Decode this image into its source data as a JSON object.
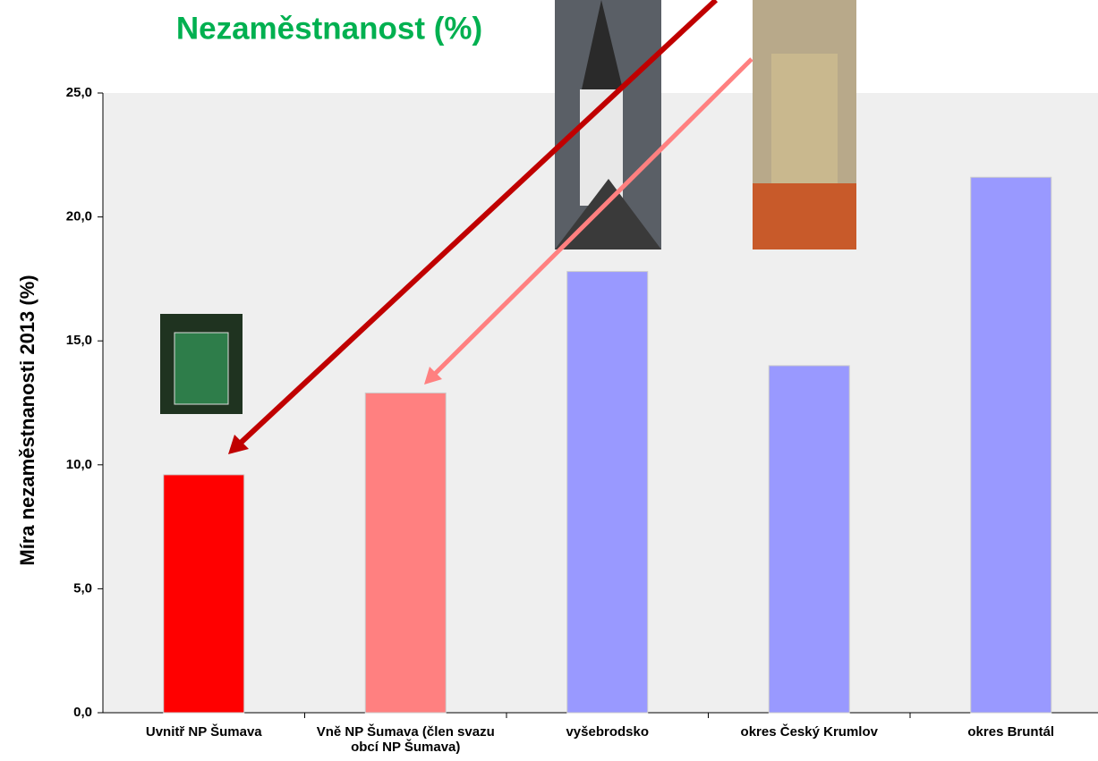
{
  "chart_data": {
    "type": "bar",
    "title": "Nezaměstnanost (%)",
    "y_label": "Míra nezaměstnanosti 2013 (%)",
    "categories": [
      "Uvnitř NP Šumava",
      "Vně NP Šumava (člen svazu obcí NP Šumava)",
      "vyšebrodsko",
      "okres Český Krumlov",
      "okres Bruntál"
    ],
    "values": [
      9.6,
      12.9,
      17.8,
      14.0,
      21.6
    ],
    "colors": [
      "#ff0000",
      "#ff8080",
      "#9999ff",
      "#9999ff",
      "#9999ff"
    ],
    "ylim": [
      0,
      25
    ],
    "yticks": [
      {
        "value": 0,
        "label": "0,0"
      },
      {
        "value": 5,
        "label": "5,0"
      },
      {
        "value": 10,
        "label": "10,0"
      },
      {
        "value": 15,
        "label": "15,0"
      },
      {
        "value": 20,
        "label": "20,0"
      },
      {
        "value": 25,
        "label": "25,0"
      }
    ],
    "grid": false
  }
}
